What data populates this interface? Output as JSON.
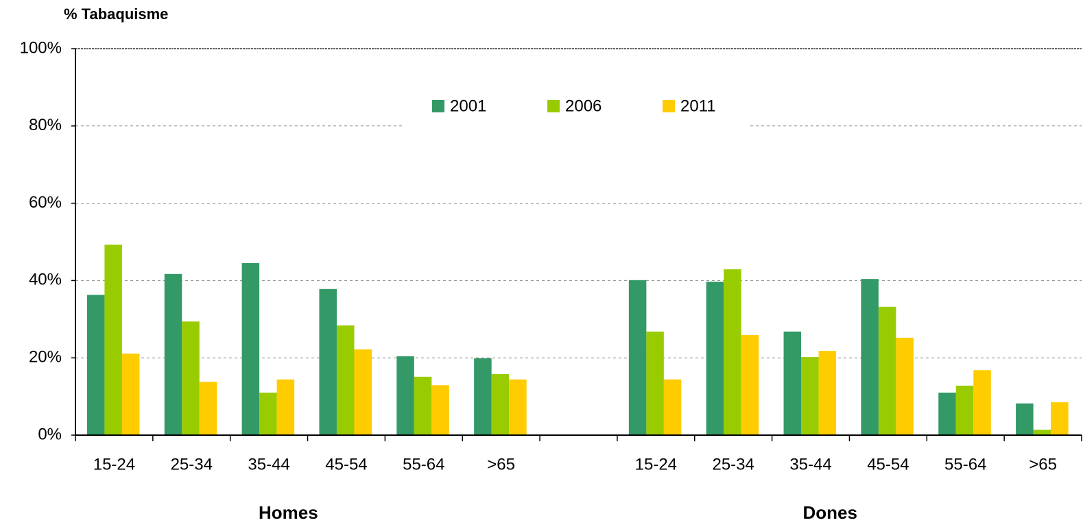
{
  "chart_data": {
    "type": "bar",
    "y_axis_label": "% Tabaquisme",
    "categories": [
      "15-24",
      "25-34",
      "35-44",
      "45-54",
      "55-64",
      ">65",
      null,
      "15-24",
      "25-34",
      "35-44",
      "45-54",
      "55-64",
      ">65"
    ],
    "group_labels": [
      "Homes",
      "Dones"
    ],
    "series": [
      {
        "name": "2001",
        "color": "#339966",
        "values": [
          36.3,
          41.7,
          44.5,
          37.8,
          20.4,
          19.9,
          null,
          40.1,
          39.7,
          26.8,
          40.4,
          11.0,
          8.2
        ]
      },
      {
        "name": "2006",
        "color": "#99cc00",
        "values": [
          49.3,
          29.4,
          11.0,
          28.4,
          15.1,
          15.8,
          null,
          26.8,
          42.9,
          20.2,
          33.2,
          12.8,
          1.4
        ]
      },
      {
        "name": "2011",
        "color": "#ffcc00",
        "values": [
          21.1,
          13.8,
          14.4,
          22.2,
          12.9,
          14.4,
          null,
          14.4,
          25.9,
          21.8,
          25.2,
          16.8,
          8.5
        ]
      }
    ],
    "ylim": [
      0,
      100
    ],
    "yticks": [
      {
        "value": 0,
        "label": "0%"
      },
      {
        "value": 20,
        "label": "20%"
      },
      {
        "value": 40,
        "label": "40%"
      },
      {
        "value": 60,
        "label": "60%"
      },
      {
        "value": 80,
        "label": "80%"
      },
      {
        "value": 100,
        "label": "100%"
      }
    ],
    "grid": true,
    "legend": "top"
  }
}
